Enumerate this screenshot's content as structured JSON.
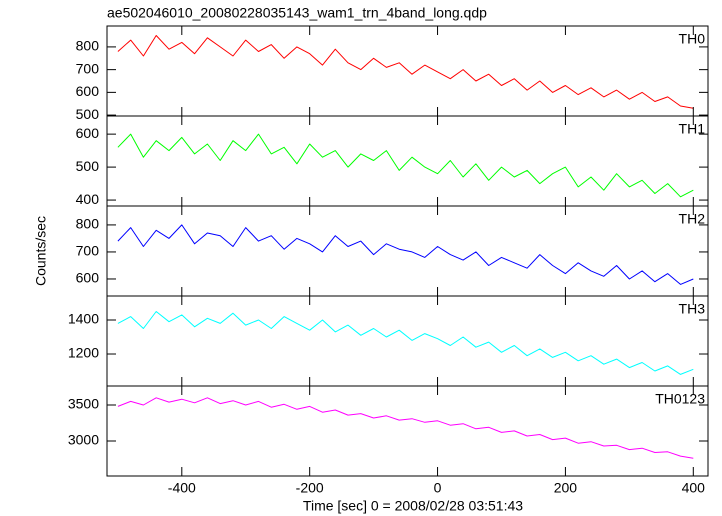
{
  "title": "ae502046010_20080228035143_wam1_trn_4band_long.qdp",
  "y_label": "Counts/sec",
  "x_label": "Time [sec] 0 = 2008/02/28 03:51:43",
  "chart_data": [
    {
      "type": "line",
      "label": "TH0",
      "color": "#ff0000",
      "x": [
        -500,
        -480,
        -460,
        -440,
        -420,
        -400,
        -380,
        -360,
        -340,
        -320,
        -300,
        -280,
        -260,
        -240,
        -220,
        -200,
        -180,
        -160,
        -140,
        -120,
        -100,
        -80,
        -60,
        -40,
        -20,
        0,
        20,
        40,
        60,
        80,
        100,
        120,
        140,
        160,
        180,
        200,
        220,
        240,
        260,
        280,
        300,
        320,
        340,
        360,
        380,
        400
      ],
      "values": [
        780,
        830,
        760,
        850,
        790,
        820,
        770,
        840,
        800,
        760,
        830,
        780,
        810,
        750,
        800,
        770,
        720,
        790,
        730,
        700,
        750,
        710,
        730,
        680,
        720,
        690,
        660,
        700,
        650,
        680,
        630,
        660,
        610,
        650,
        600,
        630,
        590,
        620,
        580,
        610,
        570,
        600,
        560,
        580,
        540,
        530
      ],
      "xlim": [
        -517,
        423
      ],
      "xticks": [
        -400,
        -200,
        0,
        200,
        400
      ],
      "ylim": [
        496,
        892
      ],
      "yticks": [
        500,
        600,
        700,
        800
      ]
    },
    {
      "type": "line",
      "label": "TH1",
      "color": "#00ff00",
      "x": [
        -500,
        -480,
        -460,
        -440,
        -420,
        -400,
        -380,
        -360,
        -340,
        -320,
        -300,
        -280,
        -260,
        -240,
        -220,
        -200,
        -180,
        -160,
        -140,
        -120,
        -100,
        -80,
        -60,
        -40,
        -20,
        0,
        20,
        40,
        60,
        80,
        100,
        120,
        140,
        160,
        180,
        200,
        220,
        240,
        260,
        280,
        300,
        320,
        340,
        360,
        380,
        400
      ],
      "values": [
        560,
        600,
        530,
        580,
        550,
        590,
        540,
        570,
        520,
        580,
        550,
        600,
        540,
        560,
        510,
        570,
        530,
        550,
        500,
        540,
        520,
        550,
        490,
        530,
        500,
        480,
        520,
        470,
        510,
        460,
        500,
        470,
        490,
        450,
        480,
        500,
        440,
        470,
        430,
        480,
        440,
        460,
        420,
        450,
        410,
        430
      ],
      "xlim": [
        -517,
        423
      ],
      "xticks": [
        -400,
        -200,
        0,
        200,
        400
      ],
      "ylim": [
        382,
        655
      ],
      "yticks": [
        400,
        500,
        600
      ]
    },
    {
      "type": "line",
      "label": "TH2",
      "color": "#0000ff",
      "x": [
        -500,
        -480,
        -460,
        -440,
        -420,
        -400,
        -380,
        -360,
        -340,
        -320,
        -300,
        -280,
        -260,
        -240,
        -220,
        -200,
        -180,
        -160,
        -140,
        -120,
        -100,
        -80,
        -60,
        -40,
        -20,
        0,
        20,
        40,
        60,
        80,
        100,
        120,
        140,
        160,
        180,
        200,
        220,
        240,
        260,
        280,
        300,
        320,
        340,
        360,
        380,
        400
      ],
      "values": [
        740,
        790,
        720,
        780,
        750,
        800,
        730,
        770,
        760,
        720,
        790,
        740,
        760,
        710,
        750,
        730,
        700,
        760,
        720,
        740,
        690,
        730,
        710,
        700,
        680,
        720,
        690,
        670,
        700,
        650,
        680,
        660,
        640,
        690,
        650,
        620,
        660,
        630,
        610,
        650,
        600,
        630,
        590,
        620,
        580,
        600
      ],
      "xlim": [
        -517,
        423
      ],
      "xticks": [
        -400,
        -200,
        0,
        200,
        400
      ],
      "ylim": [
        537,
        870
      ],
      "yticks": [
        600,
        700,
        800
      ]
    },
    {
      "type": "line",
      "label": "TH3",
      "color": "#00ffff",
      "x": [
        -500,
        -480,
        -460,
        -440,
        -420,
        -400,
        -380,
        -360,
        -340,
        -320,
        -300,
        -280,
        -260,
        -240,
        -220,
        -200,
        -180,
        -160,
        -140,
        -120,
        -100,
        -80,
        -60,
        -40,
        -20,
        0,
        20,
        40,
        60,
        80,
        100,
        120,
        140,
        160,
        180,
        200,
        220,
        240,
        260,
        280,
        300,
        320,
        340,
        360,
        380,
        400
      ],
      "values": [
        1380,
        1420,
        1350,
        1450,
        1390,
        1430,
        1360,
        1410,
        1380,
        1440,
        1370,
        1400,
        1350,
        1420,
        1380,
        1340,
        1400,
        1330,
        1370,
        1310,
        1350,
        1300,
        1340,
        1280,
        1320,
        1290,
        1250,
        1300,
        1240,
        1270,
        1210,
        1250,
        1190,
        1230,
        1180,
        1210,
        1160,
        1190,
        1140,
        1170,
        1120,
        1150,
        1100,
        1130,
        1080,
        1110
      ],
      "xlim": [
        -517,
        423
      ],
      "xticks": [
        -400,
        -200,
        0,
        200,
        400
      ],
      "ylim": [
        1012,
        1541
      ],
      "yticks": [
        1200,
        1400
      ]
    },
    {
      "type": "line",
      "label": "TH0123",
      "color": "#ff00ff",
      "x": [
        -500,
        -480,
        -460,
        -440,
        -420,
        -400,
        -380,
        -360,
        -340,
        -320,
        -300,
        -280,
        -260,
        -240,
        -220,
        -200,
        -180,
        -160,
        -140,
        -120,
        -100,
        -80,
        -60,
        -40,
        -20,
        0,
        20,
        40,
        60,
        80,
        100,
        120,
        140,
        160,
        180,
        200,
        220,
        240,
        260,
        280,
        300,
        320,
        340,
        360,
        380,
        400
      ],
      "values": [
        3480,
        3550,
        3500,
        3600,
        3540,
        3580,
        3530,
        3600,
        3520,
        3560,
        3500,
        3550,
        3470,
        3510,
        3440,
        3480,
        3400,
        3430,
        3360,
        3380,
        3320,
        3350,
        3290,
        3310,
        3260,
        3280,
        3220,
        3240,
        3170,
        3190,
        3120,
        3140,
        3070,
        3090,
        3020,
        3040,
        2970,
        2990,
        2930,
        2940,
        2880,
        2900,
        2840,
        2850,
        2790,
        2760
      ],
      "xlim": [
        -517,
        423
      ],
      "xticks": [
        -400,
        -200,
        0,
        200,
        400
      ],
      "ylim": [
        2514,
        3764
      ],
      "yticks": [
        3000,
        3500
      ]
    }
  ]
}
